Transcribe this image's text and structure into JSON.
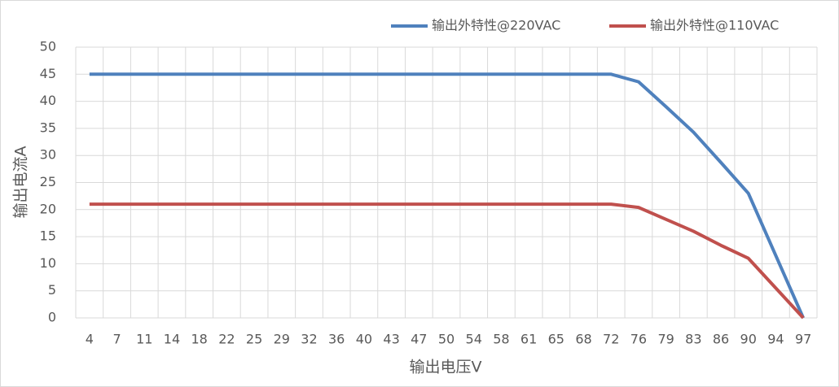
{
  "chart_data": {
    "type": "line",
    "x_label": "输出电压V",
    "y_label": "输出电流A",
    "categories": [
      4,
      7,
      11,
      14,
      18,
      22,
      25,
      29,
      32,
      36,
      40,
      43,
      47,
      50,
      54,
      58,
      61,
      65,
      68,
      72,
      76,
      79,
      83,
      86,
      90,
      94,
      97
    ],
    "series": [
      {
        "name": "输出外特性@220VAC",
        "color": "#4f81bd",
        "values": [
          45,
          45,
          45,
          45,
          45,
          45,
          45,
          45,
          45,
          45,
          45,
          45,
          45,
          45,
          45,
          45,
          45,
          45,
          45,
          45,
          43.6,
          39,
          34.3,
          28.7,
          23,
          11.5,
          0
        ]
      },
      {
        "name": "输出外特性@110VAC",
        "color": "#c0504d",
        "values": [
          21,
          21,
          21,
          21,
          21,
          21,
          21,
          21,
          21,
          21,
          21,
          21,
          21,
          21,
          21,
          21,
          21,
          21,
          21,
          21,
          20.4,
          18.2,
          16,
          13.4,
          11,
          5.5,
          0
        ]
      }
    ],
    "ylim": [
      0,
      50
    ],
    "yticks": [
      0,
      5,
      10,
      15,
      20,
      25,
      30,
      35,
      40,
      45,
      50
    ],
    "grid": true,
    "legend": "top-right"
  }
}
